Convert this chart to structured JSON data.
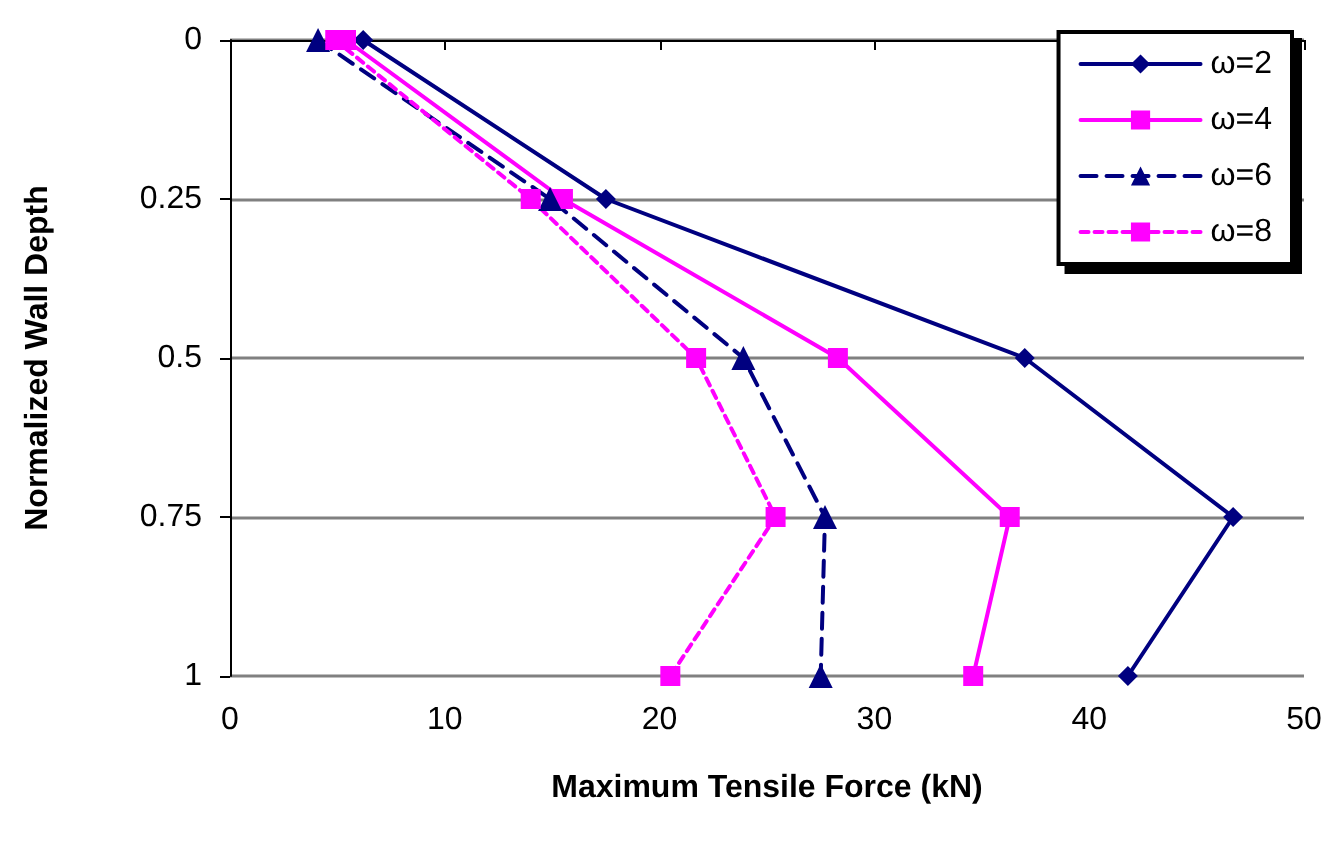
{
  "chart_data": {
    "type": "line",
    "xlabel": "Maximum Tensile Force (kN)",
    "ylabel": "Normalized Wall Depth",
    "xlim": [
      0,
      50
    ],
    "xticks": [
      0,
      10,
      20,
      30,
      40,
      50
    ],
    "ylim": [
      1,
      0
    ],
    "yticks": [
      0,
      0.25,
      0.5,
      0.75,
      1
    ],
    "grid": "y",
    "legend": "top right",
    "series": [
      {
        "name": "ω=2",
        "color": "#000080",
        "marker": "diamond",
        "line_style": "solid",
        "x": [
          6.2,
          17.5,
          37.0,
          46.7,
          41.8
        ],
        "values": [
          0,
          0.25,
          0.5,
          0.75,
          1
        ]
      },
      {
        "name": "ω=4",
        "color": "#ff00ff",
        "marker": "square",
        "line_style": "solid",
        "x": [
          5.4,
          15.5,
          28.3,
          36.3,
          34.6
        ],
        "values": [
          0,
          0.25,
          0.5,
          0.75,
          1
        ]
      },
      {
        "name": "ω=6",
        "color": "#000080",
        "marker": "triangle",
        "line_style": "dashed",
        "x": [
          4.1,
          14.9,
          23.9,
          27.7,
          27.5
        ],
        "values": [
          0,
          0.25,
          0.5,
          0.75,
          1
        ]
      },
      {
        "name": "ω=8",
        "color": "#ff00ff",
        "marker": "square",
        "line_style": "dotted",
        "x": [
          4.9,
          14.0,
          21.7,
          25.4,
          20.5
        ],
        "values": [
          0,
          0.25,
          0.5,
          0.75,
          1
        ]
      }
    ]
  }
}
